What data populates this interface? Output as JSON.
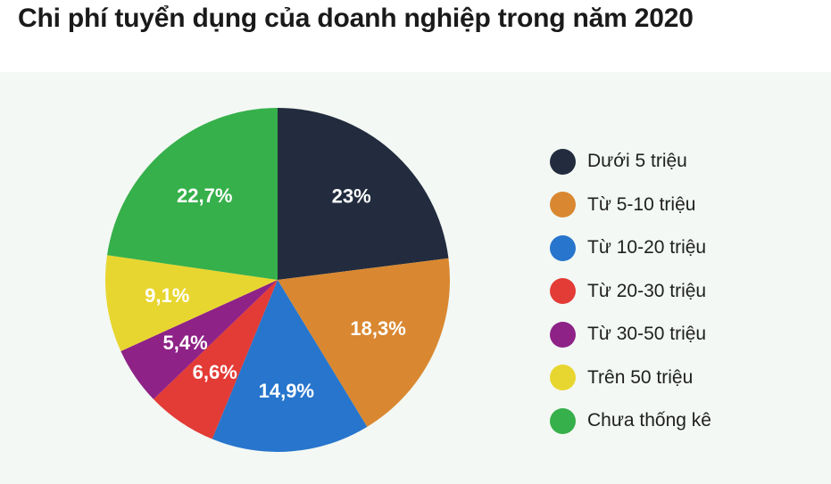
{
  "title": "Chi phí tuyển dụng của doanh nghiệp trong năm 2020",
  "chart_data": {
    "type": "pie",
    "title": "Chi phí tuyển dụng của doanh nghiệp trong năm 2020",
    "start_angle_deg": 0,
    "direction": "clockwise",
    "legend_position": "right",
    "slices": [
      {
        "label": "Dưới 5 triệu",
        "value": 23,
        "value_text": "23%",
        "color": "#222c3e"
      },
      {
        "label": "Từ 5-10 triệu",
        "value": 18.3,
        "value_text": "18,3%",
        "color": "#d98831"
      },
      {
        "label": "Từ 10-20 triệu",
        "value": 14.9,
        "value_text": "14,9%",
        "color": "#2775cc"
      },
      {
        "label": "Từ 20-30 triệu",
        "value": 6.6,
        "value_text": "6,6%",
        "color": "#e33b36"
      },
      {
        "label": "Từ 30-50 triệu",
        "value": 5.4,
        "value_text": "5,4%",
        "color": "#8e2287"
      },
      {
        "label": "Trên 50 triệu",
        "value": 9.1,
        "value_text": "9,1%",
        "color": "#e8d630"
      },
      {
        "label": "Chưa thống kê",
        "value": 22.7,
        "value_text": "22,7%",
        "color": "#36b04a"
      }
    ]
  }
}
